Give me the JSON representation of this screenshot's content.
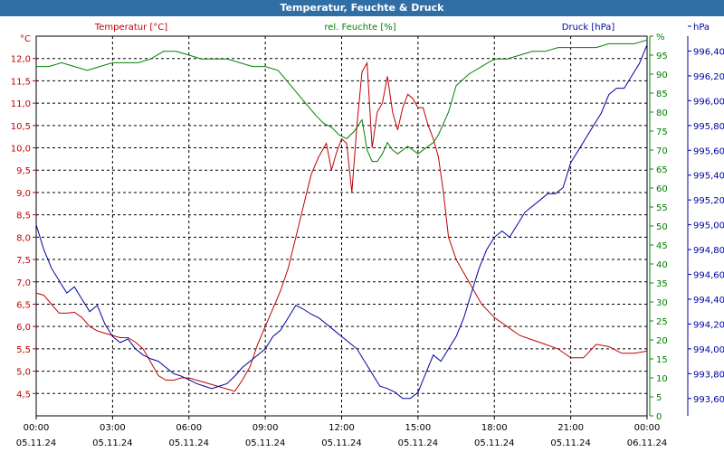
{
  "chart_data": {
    "type": "line",
    "title": "Temperatur, Feuchte & Druck",
    "x_ticks": [
      {
        "time": "00:00",
        "date": "05.11.24"
      },
      {
        "time": "03:00",
        "date": "05.11.24"
      },
      {
        "time": "06:00",
        "date": "05.11.24"
      },
      {
        "time": "09:00",
        "date": "05.11.24"
      },
      {
        "time": "12:00",
        "date": "05.11.24"
      },
      {
        "time": "15:00",
        "date": "05.11.24"
      },
      {
        "time": "18:00",
        "date": "05.11.24"
      },
      {
        "time": "21:00",
        "date": "05.11.24"
      },
      {
        "time": "00:00",
        "date": "06.11.24"
      }
    ],
    "xlim": [
      0,
      24
    ],
    "grid": true,
    "axes": {
      "left": {
        "unit": "°C",
        "ylim": [
          4.0,
          12.5
        ],
        "ticks": [
          "4,5",
          "5,0",
          "5,5",
          "6,0",
          "6,5",
          "7,0",
          "7,5",
          "8,0",
          "8,5",
          "9,0",
          "9,5",
          "10,0",
          "10,5",
          "11,0",
          "11,5",
          "12,0"
        ],
        "color": "#c00000"
      },
      "right1": {
        "unit": "%",
        "ylim": [
          0,
          100
        ],
        "ticks": [
          "0",
          "5",
          "10",
          "15",
          "20",
          "25",
          "30",
          "35",
          "40",
          "45",
          "50",
          "55",
          "60",
          "65",
          "70",
          "75",
          "80",
          "85",
          "90",
          "95",
          "%"
        ],
        "color": "#008000"
      },
      "right2": {
        "unit": "hPa",
        "ylim": [
          993.46,
          996.52
        ],
        "ticks": [
          "993,60",
          "993,80",
          "994,00",
          "994,20",
          "994,40",
          "994,60",
          "994,80",
          "995,00",
          "995,20",
          "995,40",
          "995,60",
          "995,80",
          "996,00",
          "996,20",
          "996,40",
          "hPa"
        ],
        "color": "#0000a0"
      }
    },
    "series": [
      {
        "name": "Temperatur [°C]",
        "axis": "left",
        "color": "#c00000",
        "x": [
          0,
          0.3,
          0.6,
          0.9,
          1.2,
          1.5,
          1.8,
          2.1,
          2.4,
          2.7,
          3.0,
          3.3,
          3.6,
          3.9,
          4.2,
          4.5,
          4.8,
          5.1,
          5.4,
          5.7,
          6.0,
          6.3,
          6.6,
          6.9,
          7.2,
          7.5,
          7.8,
          8.1,
          8.4,
          8.7,
          9.0,
          9.3,
          9.6,
          9.9,
          10.2,
          10.5,
          10.8,
          11.1,
          11.4,
          11.6,
          11.8,
          12.0,
          12.2,
          12.4,
          12.6,
          12.8,
          13.0,
          13.2,
          13.4,
          13.6,
          13.8,
          14.0,
          14.2,
          14.4,
          14.6,
          14.8,
          15.0,
          15.2,
          15.4,
          15.6,
          15.8,
          16.0,
          16.2,
          16.5,
          17.0,
          17.5,
          18.0,
          18.5,
          19.0,
          19.5,
          20.0,
          20.5,
          21.0,
          21.5,
          22.0,
          22.5,
          23.0,
          23.5,
          24.0
        ],
        "values": [
          6.75,
          6.7,
          6.5,
          6.3,
          6.3,
          6.32,
          6.2,
          6.0,
          5.9,
          5.85,
          5.8,
          5.75,
          5.75,
          5.65,
          5.5,
          5.2,
          4.9,
          4.8,
          4.8,
          4.85,
          4.85,
          4.8,
          4.75,
          4.7,
          4.65,
          4.6,
          4.55,
          4.8,
          5.1,
          5.6,
          6.0,
          6.4,
          6.8,
          7.3,
          8.0,
          8.7,
          9.4,
          9.8,
          10.1,
          9.5,
          9.9,
          10.2,
          10.1,
          9.0,
          10.5,
          11.7,
          11.9,
          10.0,
          10.8,
          11.0,
          11.6,
          10.8,
          10.4,
          10.9,
          11.2,
          11.1,
          10.9,
          10.9,
          10.5,
          10.2,
          9.8,
          9.0,
          8.0,
          7.5,
          7.0,
          6.5,
          6.2,
          6.0,
          5.8,
          5.7,
          5.6,
          5.5,
          5.3,
          5.3,
          5.6,
          5.55,
          5.4,
          5.4,
          5.45
        ]
      },
      {
        "name": "rel. Feuchte [%]",
        "axis": "right1",
        "color": "#008000",
        "x": [
          0,
          0.5,
          1.0,
          1.5,
          2.0,
          2.5,
          3.0,
          3.5,
          4.0,
          4.5,
          5.0,
          5.5,
          6.0,
          6.5,
          7.0,
          7.5,
          8.0,
          8.5,
          9.0,
          9.5,
          10.0,
          10.5,
          11.0,
          11.3,
          11.6,
          11.9,
          12.2,
          12.5,
          12.8,
          13.0,
          13.2,
          13.4,
          13.6,
          13.8,
          14.0,
          14.2,
          14.4,
          14.6,
          14.8,
          15.0,
          15.2,
          15.4,
          15.6,
          15.8,
          16.0,
          16.2,
          16.5,
          17.0,
          17.5,
          18.0,
          18.5,
          19.0,
          19.5,
          20.0,
          20.5,
          21.0,
          21.5,
          22.0,
          22.5,
          23.0,
          23.5,
          24.0
        ],
        "values": [
          92,
          92,
          93,
          92,
          91,
          92,
          93,
          93,
          93,
          94,
          96,
          96,
          95,
          94,
          94,
          94,
          93,
          92,
          92,
          91,
          87,
          83,
          79,
          77,
          76,
          74,
          73,
          75,
          78,
          70,
          67,
          67,
          69,
          72,
          70,
          69,
          70,
          71,
          70,
          69,
          70,
          71,
          72,
          74,
          77,
          80,
          87,
          90,
          92,
          94,
          94,
          95,
          96,
          96,
          97,
          97,
          97,
          97,
          98,
          98,
          98,
          99
        ]
      },
      {
        "name": "Druck [hPa]",
        "axis": "right2",
        "color": "#0000a0",
        "x": [
          0,
          0.3,
          0.6,
          0.9,
          1.2,
          1.5,
          1.8,
          2.1,
          2.4,
          2.7,
          3.0,
          3.3,
          3.6,
          3.9,
          4.2,
          4.5,
          4.8,
          5.1,
          5.4,
          5.7,
          6.0,
          6.3,
          6.6,
          6.9,
          7.2,
          7.5,
          7.8,
          8.1,
          8.4,
          8.7,
          9.0,
          9.3,
          9.6,
          9.9,
          10.2,
          10.5,
          10.8,
          11.1,
          11.4,
          11.7,
          12.0,
          12.3,
          12.6,
          12.9,
          13.2,
          13.5,
          13.8,
          14.1,
          14.4,
          14.7,
          15.0,
          15.3,
          15.6,
          15.9,
          16.2,
          16.5,
          16.8,
          17.1,
          17.4,
          17.7,
          18.0,
          18.3,
          18.6,
          18.9,
          19.2,
          19.5,
          19.8,
          20.1,
          20.4,
          20.7,
          21.0,
          21.3,
          21.6,
          21.9,
          22.2,
          22.5,
          22.8,
          23.1,
          23.4,
          23.7,
          24.0
        ],
        "values": [
          995.0,
          994.8,
          994.65,
          994.55,
          994.45,
          994.5,
          994.4,
          994.3,
          994.35,
          994.2,
          994.1,
          994.05,
          994.08,
          994.0,
          993.95,
          993.92,
          993.9,
          993.85,
          993.8,
          993.78,
          993.75,
          993.72,
          993.7,
          993.68,
          993.7,
          993.72,
          993.78,
          993.85,
          993.9,
          993.95,
          994.0,
          994.1,
          994.15,
          994.25,
          994.35,
          994.32,
          994.28,
          994.25,
          994.2,
          994.15,
          994.1,
          994.05,
          994.0,
          993.9,
          993.8,
          993.7,
          993.68,
          993.65,
          993.6,
          993.6,
          993.65,
          993.8,
          993.95,
          993.9,
          994.0,
          994.1,
          994.25,
          994.45,
          994.65,
          994.8,
          994.9,
          994.95,
          994.9,
          995.0,
          995.1,
          995.15,
          995.2,
          995.25,
          995.25,
          995.3,
          995.5,
          995.6,
          995.7,
          995.8,
          995.9,
          996.05,
          996.1,
          996.1,
          996.2,
          996.3,
          996.45
        ]
      }
    ]
  }
}
